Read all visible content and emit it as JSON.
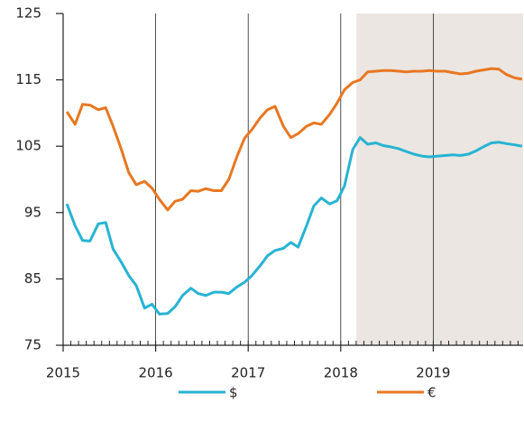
{
  "chart_data": {
    "type": "line",
    "x": [
      2015.04,
      2015.13,
      2015.21,
      2015.29,
      2015.38,
      2015.46,
      2015.54,
      2015.63,
      2015.71,
      2015.79,
      2015.88,
      2015.96,
      2016.04,
      2016.13,
      2016.21,
      2016.29,
      2016.38,
      2016.46,
      2016.54,
      2016.63,
      2016.71,
      2016.79,
      2016.88,
      2016.96,
      2017.04,
      2017.13,
      2017.21,
      2017.29,
      2017.38,
      2017.46,
      2017.54,
      2017.63,
      2017.71,
      2017.79,
      2017.88,
      2017.96,
      2018.04,
      2018.13,
      2018.21,
      2018.29,
      2018.38,
      2018.46,
      2018.54,
      2018.63,
      2018.71,
      2018.79,
      2018.88,
      2018.96,
      2019.04,
      2019.13,
      2019.21,
      2019.29,
      2019.38,
      2019.46,
      2019.54,
      2019.63,
      2019.71,
      2019.79,
      2019.88,
      2019.96
    ],
    "series": [
      {
        "name": "$",
        "color": "#27b3d3",
        "values": [
          96.3,
          93,
          90.8,
          90.7,
          93.3,
          93.5,
          89.5,
          87.5,
          85.5,
          84,
          80.6,
          81.2,
          79.7,
          79.8,
          80.8,
          82.5,
          83.6,
          82.8,
          82.5,
          83,
          83,
          82.8,
          83.8,
          84.5,
          85.5,
          87,
          88.5,
          89.3,
          89.6,
          90.5,
          89.8,
          93,
          96,
          97.2,
          96.3,
          96.8,
          99,
          104.5,
          106.3,
          105.3,
          105.5,
          105.1,
          104.9,
          104.6,
          104.2,
          103.8,
          103.5,
          103.4,
          103.5,
          103.6,
          103.7,
          103.6,
          103.8,
          104.3,
          104.9,
          105.5,
          105.6,
          105.4,
          105.2,
          105
        ]
      },
      {
        "name": "€",
        "color": "#e87722",
        "values": [
          110.2,
          108.3,
          111.3,
          111.2,
          110.5,
          110.8,
          108,
          104.5,
          101,
          99.2,
          99.7,
          98.7,
          97,
          95.4,
          96.7,
          97,
          98.3,
          98.2,
          98.6,
          98.3,
          98.3,
          100,
          103.5,
          106.2,
          107.5,
          109.3,
          110.5,
          111,
          108,
          106.3,
          106.9,
          108,
          108.5,
          108.3,
          109.8,
          111.5,
          113.5,
          114.6,
          115,
          116.2,
          116.3,
          116.4,
          116.4,
          116.3,
          116.2,
          116.3,
          116.3,
          116.4,
          116.3,
          116.3,
          116.1,
          115.9,
          116,
          116.3,
          116.5,
          116.7,
          116.6,
          115.8,
          115.3,
          115.1
        ]
      }
    ],
    "xlim": [
      2015,
      2020
    ],
    "xticks": [
      2015,
      2016,
      2017,
      2018,
      2019
    ],
    "ylim": [
      75,
      125
    ],
    "yticks": [
      75,
      85,
      95,
      105,
      115,
      125
    ],
    "x_grid": true,
    "minor_ticks_per_year": 12,
    "shaded_region": [
      2018.17,
      2020
    ],
    "shade_color": "#ebe6e1",
    "legend": "bottom"
  }
}
